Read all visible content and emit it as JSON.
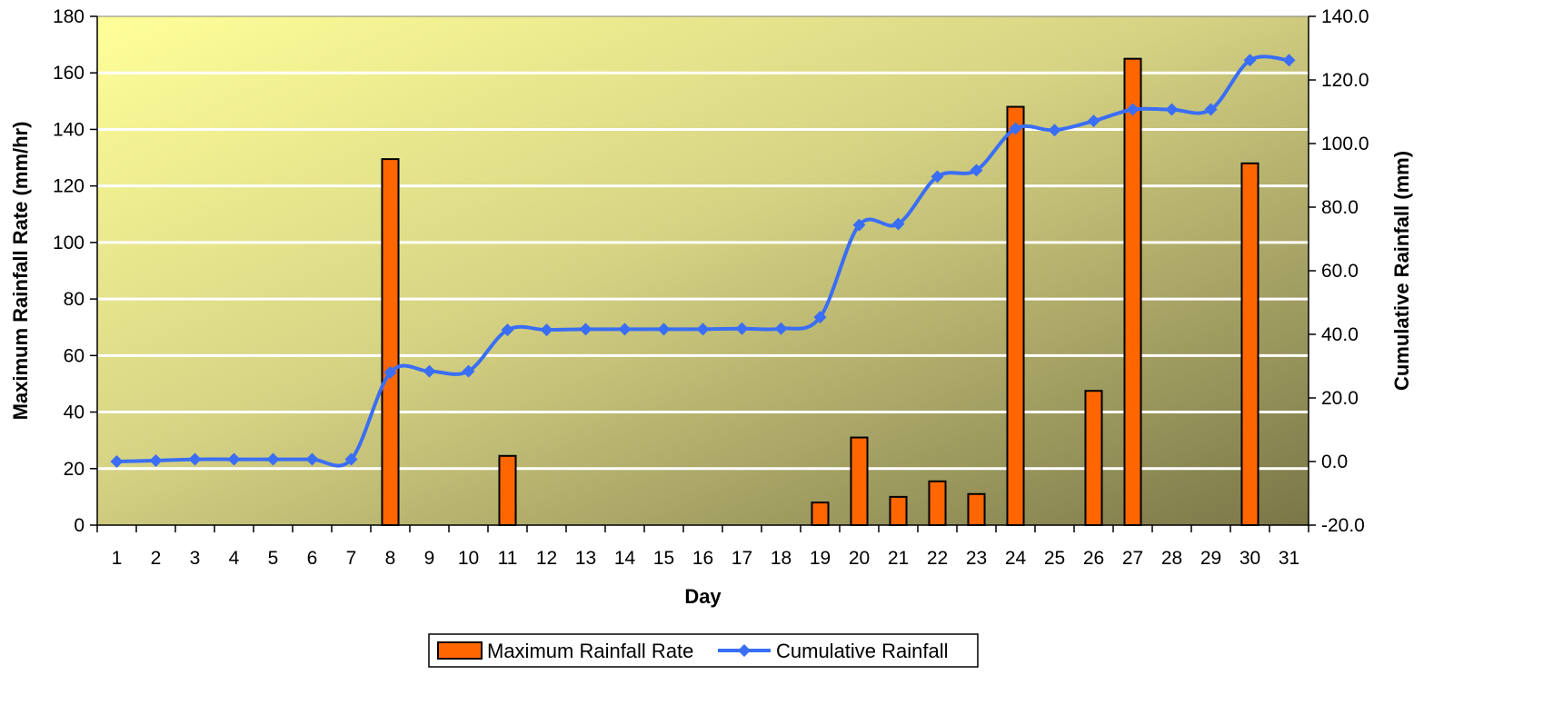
{
  "chart_data": {
    "type": "bar",
    "xlabel": "Day",
    "ylabel_left": "Maximum Rainfall Rate (mm/hr)",
    "ylabel_right": "Cumulative Rainfall (mm)",
    "categories": [
      "1",
      "2",
      "3",
      "4",
      "5",
      "6",
      "7",
      "8",
      "9",
      "10",
      "11",
      "12",
      "13",
      "14",
      "15",
      "16",
      "17",
      "18",
      "19",
      "20",
      "21",
      "22",
      "23",
      "24",
      "25",
      "26",
      "27",
      "28",
      "29",
      "30",
      "31"
    ],
    "ylim_left": [
      0,
      180
    ],
    "ylim_right": [
      -20,
      140
    ],
    "left_ticks": [
      "0",
      "20",
      "40",
      "60",
      "80",
      "100",
      "120",
      "140",
      "160",
      "180"
    ],
    "right_ticks": [
      "-20.0",
      "0.0",
      "20.0",
      "40.0",
      "60.0",
      "80.0",
      "100.0",
      "120.0",
      "140.0"
    ],
    "grid": true,
    "legend_position": "bottom",
    "series": [
      {
        "name": "Maximum Rainfall Rate",
        "type": "bar",
        "axis": "left",
        "color": "#FF6600",
        "values": [
          0,
          0,
          0,
          0,
          0,
          0,
          0,
          129.5,
          0,
          0,
          24.5,
          0,
          0,
          0,
          0,
          0,
          0,
          0,
          8,
          31,
          10,
          15.5,
          11,
          148,
          0,
          47.5,
          165,
          0,
          0,
          128,
          0
        ]
      },
      {
        "name": "Cumulative Rainfall",
        "type": "line",
        "axis": "right",
        "color": "#3A6EF5",
        "values": [
          0,
          0.3,
          0.7,
          0.7,
          0.7,
          0.7,
          0.7,
          28,
          28.4,
          28.4,
          41.4,
          41.4,
          41.6,
          41.6,
          41.6,
          41.6,
          41.8,
          41.8,
          45.4,
          74.4,
          74.7,
          89.6,
          91.6,
          104.7,
          104.2,
          107.1,
          110.7,
          110.7,
          110.7,
          126.2,
          126.2
        ]
      }
    ]
  },
  "colors": {
    "bar_fill": "#FF6600",
    "line": "#3A6EF5",
    "plot_bg_light": "#FFFF99",
    "plot_bg_dark": "#7F7A4A",
    "grid": "#FFFFFF"
  }
}
